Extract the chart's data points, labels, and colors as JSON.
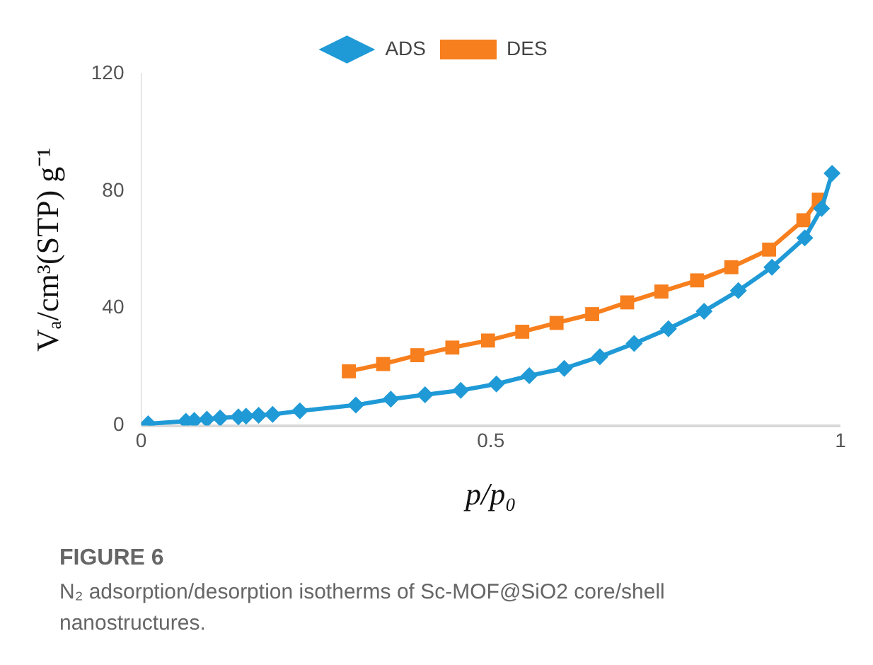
{
  "chart_data": {
    "type": "line",
    "xlabel": "p/p₀",
    "ylabel": "Vₐ/cm³(STP) g⁻¹",
    "legend": "top",
    "grid": false,
    "xlim": [
      0,
      1
    ],
    "xticks": [
      0,
      0.5,
      1
    ],
    "ylim": [
      0,
      120
    ],
    "yticks": [
      0,
      40,
      80,
      120
    ],
    "series": [
      {
        "name": "ADS",
        "color": "#1f9ad6",
        "marker": "diamond",
        "x": [
          0.01,
          0.064,
          0.076,
          0.094,
          0.113,
          0.139,
          0.15,
          0.168,
          0.188,
          0.227,
          0.307,
          0.357,
          0.406,
          0.457,
          0.508,
          0.555,
          0.605,
          0.656,
          0.705,
          0.754,
          0.805,
          0.854,
          0.902,
          0.949,
          0.973,
          0.988
        ],
        "values": [
          0.6,
          1.5,
          1.8,
          2.2,
          2.6,
          3,
          3.2,
          3.5,
          3.8,
          5,
          7,
          9,
          10.5,
          12,
          14.2,
          17,
          19.5,
          23.5,
          28,
          33,
          39,
          46,
          54,
          64,
          74,
          86
        ]
      },
      {
        "name": "DES",
        "color": "#f77f1d",
        "marker": "square",
        "x": [
          0.297,
          0.346,
          0.395,
          0.445,
          0.496,
          0.545,
          0.594,
          0.645,
          0.695,
          0.744,
          0.795,
          0.844,
          0.898,
          0.947,
          0.969
        ],
        "values": [
          18.5,
          21,
          24,
          26.6,
          29,
          32,
          35,
          38,
          42,
          45.7,
          49.5,
          54,
          60,
          70,
          77
        ]
      }
    ],
    "annotations": [
      "FIGURE 6",
      "N₂ adsorption/desorption isotherms of Sc-MOF@SiO2 core/shell nanostructures."
    ]
  }
}
